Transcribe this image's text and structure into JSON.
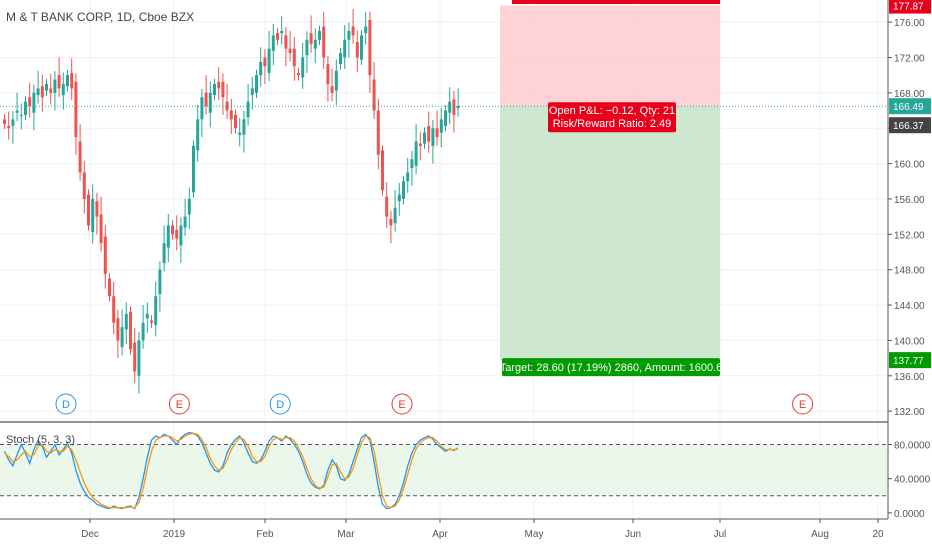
{
  "title": "M & T BANK CORP, 1D, Cboe BZX",
  "stoch_title": "Stoch (5, 3, 3)",
  "colors": {
    "up": "#26a69a",
    "down": "#ef5350",
    "stop_zone": "#ffcdd2",
    "target_zone": "#c8e6c9",
    "price_line": "#26a69a",
    "k_line": "#2196f3",
    "d_line": "#ff9800",
    "stoch_band": "#eaf7ea",
    "label_red": "#e6001a",
    "label_green": "#009b00",
    "event_d": "#2196f3",
    "event_e": "#e53935"
  },
  "chart_data": [
    {
      "type": "candlestick",
      "title": "M & T BANK CORP, 1D, Cboe BZX",
      "x_ticks": [
        "Dec",
        "2019",
        "Feb",
        "Mar",
        "Apr",
        "May",
        "Jun",
        "Jul",
        "Aug",
        "20"
      ],
      "y_ticks": [
        "176.00",
        "172.00",
        "168.00",
        "164.00",
        "160.00",
        "156.00",
        "152.00",
        "148.00",
        "144.00",
        "140.00",
        "136.00",
        "132.00"
      ],
      "ylim": [
        131,
        178.5
      ],
      "last_price": "166.49",
      "cursor_price": "166.37",
      "stop_price": "177.87",
      "target_price": "137.77",
      "position": {
        "entry": 166.49,
        "stop": 177.87,
        "target": 137.77,
        "pnl_label": "Open P&L: −0.12, Qty: 21",
        "rr_label": "Risk/Reward Ratio: 2.49",
        "target_label": "Target: 28.60 (17.19%) 2860, Amount: 1600.6"
      },
      "events": [
        {
          "label": "D",
          "kind": "dividend",
          "bar": 15
        },
        {
          "label": "E",
          "kind": "earnings",
          "bar": 42
        },
        {
          "label": "D",
          "kind": "dividend",
          "bar": 66
        },
        {
          "label": "E",
          "kind": "earnings",
          "bar": 95
        },
        {
          "label": "E",
          "kind": "earnings",
          "bar": 155
        }
      ],
      "series": [
        {
          "name": "",
          "close": [
            164.5,
            164.0,
            165.0,
            166.0,
            165.5,
            167.0,
            166.5,
            168.0,
            168.5,
            167.5,
            169.0,
            168.0,
            169.5,
            168.5,
            169.0,
            170.0,
            168.5,
            163.0,
            159.0,
            156.0,
            153.0,
            156.0,
            154.0,
            151.0,
            147.5,
            145.0,
            142.0,
            140.0,
            141.5,
            143.0,
            139.0,
            136.5,
            140.0,
            142.0,
            143.0,
            142.0,
            145.0,
            148.0,
            151.0,
            153.0,
            152.0,
            151.5,
            153.0,
            154.0,
            156.0,
            162.0,
            165.0,
            167.5,
            166.5,
            168.0,
            169.0,
            168.5,
            167.5,
            166.0,
            165.0,
            164.0,
            163.5,
            165.0,
            167.0,
            168.5,
            170.0,
            171.5,
            171.0,
            173.0,
            174.5,
            174.0,
            175.0,
            173.0,
            172.5,
            171.0,
            170.0,
            172.0,
            174.0,
            173.5,
            174.0,
            175.0,
            172.0,
            169.0,
            168.0,
            170.5,
            172.5,
            174.0,
            175.0,
            174.5,
            172.0,
            174.5,
            175.5,
            170.0,
            166.0,
            161.0,
            157.0,
            154.0,
            153.0,
            155.0,
            156.5,
            158.0,
            159.0,
            160.5,
            162.5,
            162.0,
            163.5,
            162.5,
            164.0,
            163.0,
            165.0,
            166.0,
            167.0,
            165.5,
            166.49
          ]
        }
      ]
    },
    {
      "type": "line",
      "title": "Stoch (5, 3, 3)",
      "y_ticks": [
        "80.0000",
        "40.0000",
        "0.0000"
      ],
      "ylim": [
        -6,
        104
      ],
      "levels": [
        80,
        20
      ],
      "series": [
        {
          "name": "",
          "role": "%K",
          "values": [
            72,
            62,
            55,
            68,
            80,
            70,
            58,
            74,
            85,
            78,
            65,
            72,
            80,
            68,
            74,
            82,
            70,
            50,
            35,
            25,
            18,
            15,
            10,
            8,
            6,
            5,
            8,
            6,
            5,
            7,
            8,
            5,
            18,
            40,
            65,
            85,
            90,
            88,
            92,
            90,
            85,
            80,
            88,
            92,
            94,
            93,
            90,
            82,
            70,
            58,
            50,
            48,
            55,
            70,
            80,
            86,
            90,
            82,
            70,
            60,
            58,
            62,
            72,
            84,
            90,
            88,
            84,
            90,
            86,
            80,
            72,
            60,
            45,
            35,
            30,
            28,
            32,
            50,
            62,
            55,
            40,
            38,
            45,
            60,
            75,
            88,
            92,
            85,
            60,
            30,
            10,
            5,
            6,
            10,
            20,
            35,
            55,
            70,
            80,
            85,
            88,
            90,
            86,
            80,
            76,
            72,
            75,
            73,
            76
          ]
        },
        {
          "name": "",
          "role": "%D",
          "values": [
            70,
            66,
            60,
            62,
            68,
            72,
            66,
            68,
            78,
            80,
            72,
            70,
            74,
            72,
            72,
            78,
            74,
            62,
            48,
            35,
            25,
            18,
            14,
            10,
            8,
            6,
            6,
            6,
            6,
            6,
            7,
            6,
            12,
            28,
            52,
            72,
            85,
            88,
            90,
            90,
            88,
            84,
            86,
            90,
            92,
            93,
            92,
            86,
            76,
            64,
            55,
            50,
            52,
            62,
            74,
            82,
            88,
            86,
            78,
            66,
            60,
            60,
            66,
            78,
            86,
            88,
            86,
            88,
            88,
            84,
            76,
            66,
            52,
            40,
            32,
            29,
            30,
            42,
            56,
            58,
            48,
            40,
            42,
            52,
            68,
            82,
            90,
            88,
            72,
            45,
            20,
            8,
            6,
            8,
            15,
            28,
            45,
            62,
            75,
            82,
            86,
            88,
            88,
            84,
            78,
            74,
            74,
            74,
            75
          ]
        }
      ]
    }
  ]
}
